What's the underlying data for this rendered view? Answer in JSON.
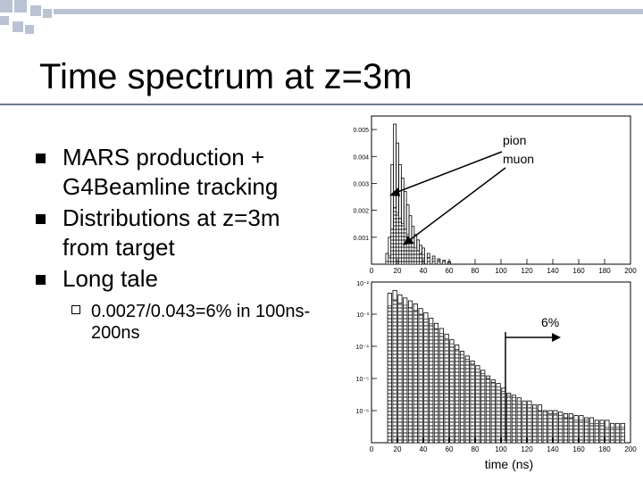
{
  "slide": {
    "title": "Time spectrum at z=3m",
    "bullets": [
      {
        "text": "MARS production + G4Beamline tracking"
      },
      {
        "text": "Distributions at z=3m from target"
      },
      {
        "text": "Long tale"
      }
    ],
    "sub_bullet": "0.0027/0.043=6% in 100ns-200ns",
    "colors": {
      "accent_squares": "#b9c3d4",
      "accent_line": "#6d7993",
      "bullet": "#000000"
    }
  },
  "chart_data": [
    {
      "type": "bar",
      "title": "",
      "xlabel": "",
      "ylabel": "",
      "xlim": [
        0,
        200
      ],
      "ylim": [
        0,
        0.0055
      ],
      "x_ticks": [
        "0",
        "20",
        "40",
        "60",
        "80",
        "100",
        "120",
        "140",
        "160",
        "180",
        "200"
      ],
      "y_ticks": [
        "0.001",
        "0.002",
        "0.003",
        "0.004",
        "0.005"
      ],
      "x": [
        12,
        14,
        16,
        18,
        20,
        22,
        24,
        26,
        28,
        30,
        32,
        34,
        36,
        38,
        40,
        44,
        48,
        52,
        56,
        60
      ],
      "series": [
        {
          "name": "pion",
          "values": [
            0.0004,
            0.001,
            0.0037,
            0.0052,
            0.0045,
            0.0037,
            0.0032,
            0.0027,
            0.0022,
            0.0018,
            0.0014,
            0.0011,
            0.0009,
            0.0007,
            0.0006,
            0.0004,
            0.0003,
            0.0002,
            0.00015,
            0.0001
          ]
        },
        {
          "name": "muon",
          "values": [
            0.0001,
            0.0003,
            0.0013,
            0.0021,
            0.0019,
            0.0017,
            0.0015,
            0.0013,
            0.0011,
            0.0009,
            0.0008,
            0.0006,
            0.0005,
            0.0004,
            0.00035,
            0.00025,
            0.0002,
            0.00015,
            0.0001,
            8e-05
          ]
        }
      ],
      "annotations": [
        "pion",
        "muon"
      ],
      "grid": false
    },
    {
      "type": "bar",
      "title": "",
      "xlabel": "time (ns)",
      "ylabel": "",
      "log_y": true,
      "xlim": [
        0,
        200
      ],
      "ylim": [
        1e-07,
        0.01
      ],
      "x_ticks": [
        "0",
        "20",
        "40",
        "60",
        "80",
        "100",
        "120",
        "140",
        "160",
        "180",
        "200"
      ],
      "y_ticks": [
        "10⁻³",
        "10⁻⁴",
        "10⁻⁵",
        "10⁻⁶"
      ],
      "y_ticks_top": "10⁻²",
      "y_tick_values": [
        0.001,
        0.0001,
        1e-05,
        1e-06
      ],
      "x": [
        14,
        18,
        22,
        26,
        30,
        34,
        38,
        42,
        46,
        50,
        54,
        58,
        62,
        66,
        70,
        74,
        78,
        82,
        86,
        90,
        94,
        98,
        102,
        106,
        110,
        114,
        118,
        122,
        126,
        130,
        134,
        138,
        142,
        146,
        150,
        154,
        158,
        162,
        166,
        170,
        174,
        178,
        182,
        186,
        190,
        194
      ],
      "series": [
        {
          "name": "pion",
          "values": [
            0.0045,
            0.0055,
            0.004,
            0.0032,
            0.0026,
            0.0021,
            0.0015,
            0.0011,
            0.00075,
            0.00052,
            0.00036,
            0.00024,
            0.00016,
            0.00011,
            7e-05,
            5e-05,
            3.5e-05,
            2.5e-05,
            1.8e-05,
            1.2e-05,
            9e-06,
            7e-06,
            5e-06,
            3.5e-06,
            3e-06,
            2.5e-06,
            2e-06,
            2e-06,
            1.5e-06,
            1.5e-06,
            1e-06,
            1e-06,
            1e-06,
            9e-07,
            8e-07,
            8e-07,
            7e-07,
            7e-07,
            6e-07,
            6e-07,
            5e-07,
            5e-07,
            5e-07,
            4e-07,
            4e-07,
            4e-07
          ]
        },
        {
          "name": "muon",
          "values": [
            0.0018,
            0.0028,
            0.0022,
            0.0019,
            0.0016,
            0.0013,
            0.001,
            0.0007,
            0.0005,
            0.00035,
            0.00025,
            0.00017,
            0.00012,
            8e-05,
            5.5e-05,
            4e-05,
            2.8e-05,
            2e-05,
            1.4e-05,
            1e-05,
            7.5e-06,
            5.5e-06,
            4e-06,
            3e-06,
            2.5e-06,
            2e-06,
            1.5e-06,
            1.5e-06,
            1.2e-06,
            1e-06,
            9e-07,
            8e-07,
            8e-07,
            7e-07,
            6e-07,
            6e-07,
            5e-07,
            5e-07,
            5e-07,
            4e-07,
            4e-07,
            4e-07,
            3e-07,
            3e-07,
            3e-07,
            3e-07
          ]
        }
      ],
      "annotations": [
        "6%"
      ],
      "grid": false
    }
  ]
}
